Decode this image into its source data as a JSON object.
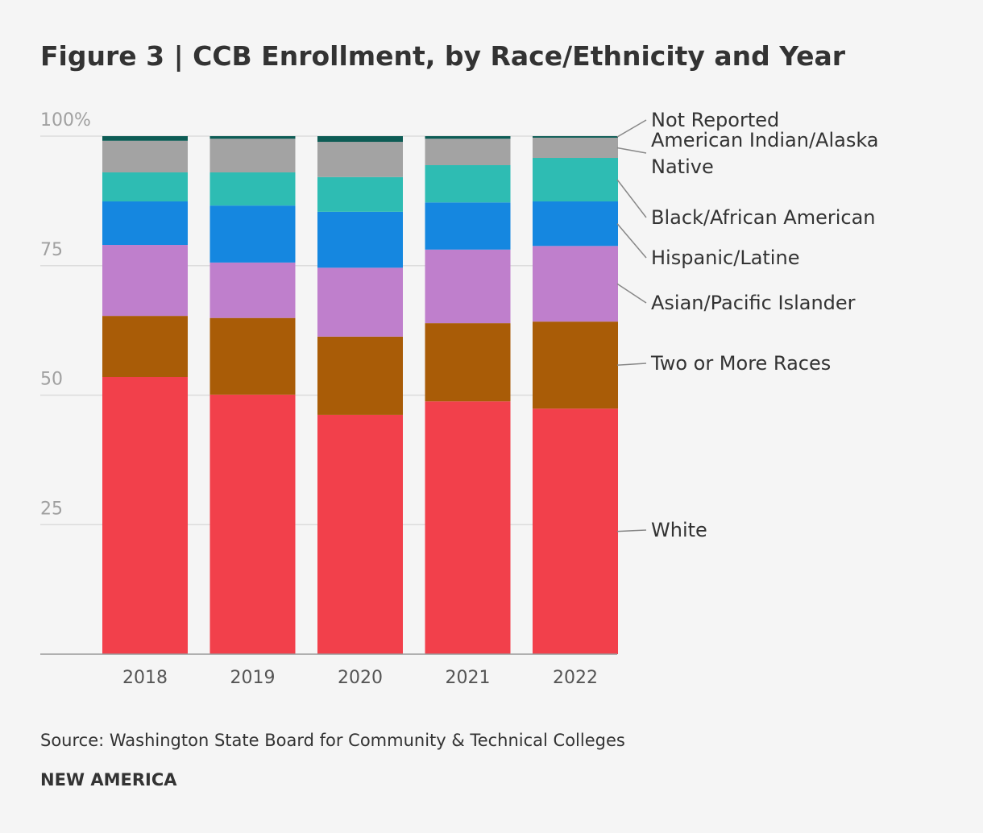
{
  "chart_data": {
    "type": "stacked-bar",
    "title": "Figure 3 | CCB Enrollment, by Race/Ethnicity and Year",
    "source": "Source: Washington State Board for Community & Technical Colleges",
    "brand": "NEW AMERICA",
    "categories": [
      "2018",
      "2019",
      "2020",
      "2021",
      "2022"
    ],
    "ylim": [
      0,
      100
    ],
    "yticks": [
      25,
      50,
      75,
      {
        "value": 100,
        "label": "100%"
      }
    ],
    "grid": true,
    "series": [
      {
        "name": "White",
        "color": "#f2404b",
        "values": [
          53.5,
          50.1,
          46.2,
          48.8,
          47.4
        ]
      },
      {
        "name": "Two or More Races",
        "color": "#a95c07",
        "values": [
          11.8,
          14.8,
          15.1,
          15.1,
          16.8
        ]
      },
      {
        "name": "Asian/Pacific Islander",
        "color": "#bf7fcc",
        "values": [
          13.7,
          10.7,
          13.3,
          14.2,
          14.6
        ]
      },
      {
        "name": "Hispanic/Latine",
        "color": "#1587e0",
        "values": [
          8.4,
          11.0,
          10.8,
          9.1,
          8.6
        ]
      },
      {
        "name": "Black/African American",
        "color": "#2ebcb3",
        "values": [
          5.6,
          6.4,
          6.7,
          7.2,
          8.4
        ]
      },
      {
        "name": "American Indian/Alaska Native",
        "color": "#a3a3a3",
        "values": [
          6.1,
          6.5,
          6.8,
          5.1,
          3.9
        ]
      },
      {
        "name": "Not Reported",
        "color": "#0d5c55",
        "values": [
          0.9,
          0.5,
          1.1,
          0.5,
          0.3
        ]
      }
    ]
  }
}
